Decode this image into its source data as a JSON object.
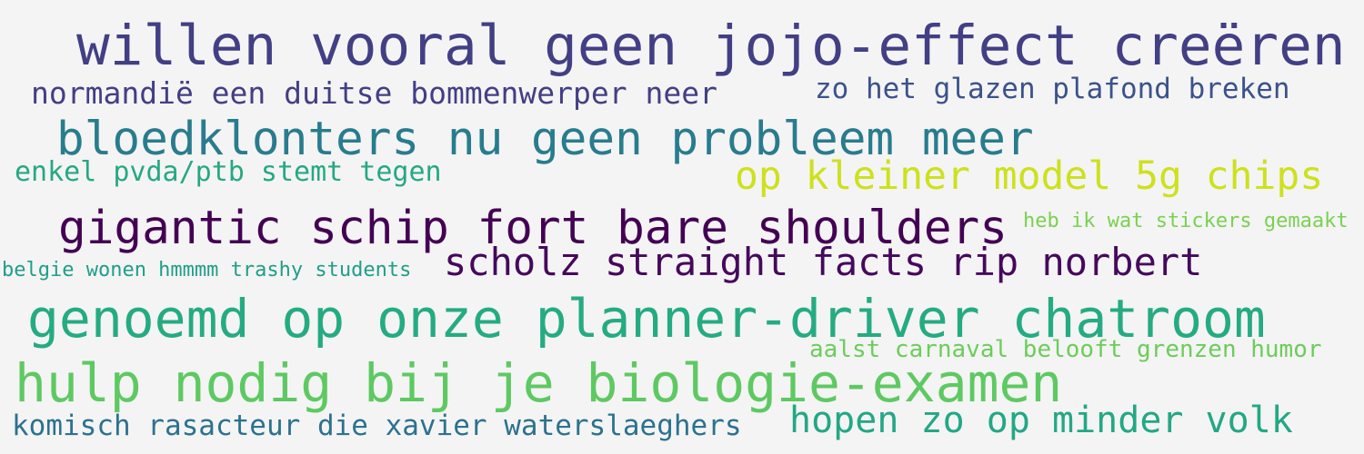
{
  "words": [
    {
      "text": "willen vooral geen jojo-effect creëren",
      "color": "#423f85"
    },
    {
      "text": "normandië een duitse bommenwerper neer",
      "color": "#423f85"
    },
    {
      "text": "zo het glazen plafond breken",
      "color": "#3b528b"
    },
    {
      "text": "bloedklonters nu geen probleem meer",
      "color": "#287c8e"
    },
    {
      "text": "enkel pvda/ptb stemt tegen",
      "color": "#26a883"
    },
    {
      "text": "op kleiner model 5g chips",
      "color": "#cde11d"
    },
    {
      "text": "gigantic schip fort bare shoulders",
      "color": "#440154"
    },
    {
      "text": "heb ik wat stickers gemaakt",
      "color": "#7ad151"
    },
    {
      "text": "belgie wonen hmmmm trashy students",
      "color": "#1f9e89"
    },
    {
      "text": "scholz straight facts rip norbert",
      "color": "#46085c"
    },
    {
      "text": "genoemd op onze planner-driver chatroom",
      "color": "#25ab82"
    },
    {
      "text": "aalst carnaval belooft grenzen humor",
      "color": "#6ccd5a"
    },
    {
      "text": "hulp nodig bij je biologie-examen",
      "color": "#5ec962"
    },
    {
      "text": "komisch rasacteur die xavier waterslaeghers",
      "color": "#2c728e"
    },
    {
      "text": "hopen zo op minder volk",
      "color": "#22a884"
    }
  ]
}
